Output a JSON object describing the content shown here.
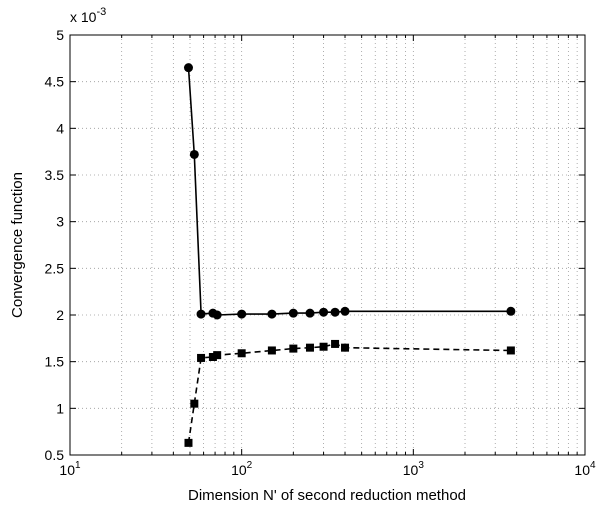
{
  "chart_data": {
    "type": "line",
    "title": "",
    "xlabel": "Dimension N' of second reduction method",
    "ylabel": "Convergence function",
    "x_scale": "log",
    "xlim": [
      10,
      10000
    ],
    "ylim": [
      0.5,
      5
    ],
    "y_multiplier": "x 10",
    "y_multiplier_exp": "-3",
    "grid": true,
    "x_ticks": [
      {
        "value": 10,
        "base": "10",
        "exp": "1"
      },
      {
        "value": 100,
        "base": "10",
        "exp": "2"
      },
      {
        "value": 1000,
        "base": "10",
        "exp": "3"
      },
      {
        "value": 10000,
        "base": "10",
        "exp": "4"
      }
    ],
    "y_ticks": [
      {
        "value": 0.5,
        "label": "0.5"
      },
      {
        "value": 1,
        "label": "1"
      },
      {
        "value": 1.5,
        "label": "1.5"
      },
      {
        "value": 2,
        "label": "2"
      },
      {
        "value": 2.5,
        "label": "2.5"
      },
      {
        "value": 3,
        "label": "3"
      },
      {
        "value": 3.5,
        "label": "3.5"
      },
      {
        "value": 4,
        "label": "4"
      },
      {
        "value": 4.5,
        "label": "4.5"
      },
      {
        "value": 5,
        "label": "5"
      }
    ],
    "series": [
      {
        "line_style": "solid",
        "marker": "circle",
        "color": "#000000",
        "x": [
          49,
          53,
          58,
          68,
          72,
          100,
          150,
          200,
          250,
          300,
          350,
          400,
          3700
        ],
        "y": [
          4.65,
          3.72,
          2.01,
          2.02,
          2.0,
          2.01,
          2.01,
          2.02,
          2.02,
          2.03,
          2.03,
          2.04,
          2.04
        ]
      },
      {
        "line_style": "dashed",
        "marker": "square",
        "color": "#000000",
        "x": [
          49,
          53,
          58,
          68,
          72,
          100,
          150,
          200,
          250,
          300,
          350,
          400,
          3700
        ],
        "y": [
          0.63,
          1.05,
          1.54,
          1.55,
          1.57,
          1.59,
          1.62,
          1.64,
          1.65,
          1.66,
          1.69,
          1.65,
          1.62
        ]
      }
    ]
  }
}
